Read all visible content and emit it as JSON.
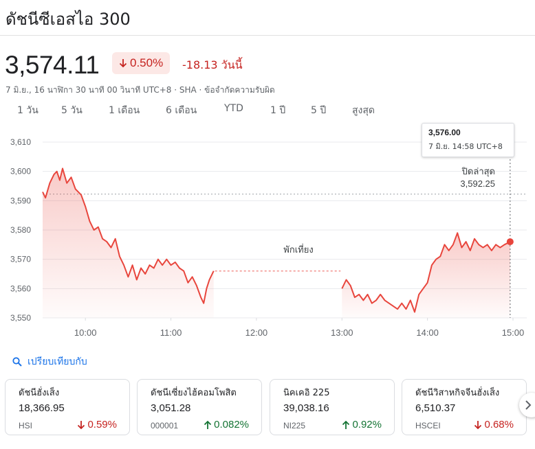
{
  "header": {
    "title": "ดัชนีซีเอสไอ 300",
    "price": "3,574.11",
    "change_pct": "0.50%",
    "change_abs": "-18.13 วันนี้",
    "meta": "7 มิ.ย., 16 นาฬิกา 30 นาที 00 วินาที UTC+8 · SHA · ข้อจำกัดความรับผิด"
  },
  "colors": {
    "down": "#c5221f",
    "up": "#137333",
    "accent": "#1a73e8",
    "line": "#e8453c",
    "fill": "#fce8e6"
  },
  "tabs": [
    {
      "label": "1 วัน",
      "active": true
    },
    {
      "label": "5 วัน",
      "active": false
    },
    {
      "label": "1 เดือน",
      "active": false
    },
    {
      "label": "6 เดือน",
      "active": false
    },
    {
      "label": "YTD",
      "active": false
    },
    {
      "label": "1 ปี",
      "active": false
    },
    {
      "label": "5 ปี",
      "active": false
    },
    {
      "label": "สูงสุด",
      "active": false
    }
  ],
  "tooltip": {
    "value": "3,576.00",
    "time": "7 มิ.ย. 14:58 UTC+8"
  },
  "chart_data": {
    "type": "line",
    "ylim": [
      3550,
      3610
    ],
    "y_ticks": [
      "3,610",
      "3,600",
      "3,590",
      "3,580",
      "3,570",
      "3,560",
      "3,550"
    ],
    "x_ticks": [
      "10:00",
      "11:00",
      "12:00",
      "13:00",
      "14:00",
      "15:00"
    ],
    "prev_close_label": "ปิดล่าสุด",
    "prev_close_value": "3,592.25",
    "prev_close": 3592.25,
    "lunch_label": "พักเที่ยง",
    "morning": [
      [
        "09:30",
        3593
      ],
      [
        "09:32",
        3591
      ],
      [
        "09:35",
        3596
      ],
      [
        "09:38",
        3599
      ],
      [
        "09:40",
        3600
      ],
      [
        "09:42",
        3597
      ],
      [
        "09:44",
        3601
      ],
      [
        "09:47",
        3596
      ],
      [
        "09:50",
        3598
      ],
      [
        "09:53",
        3594
      ],
      [
        "09:57",
        3592
      ],
      [
        "10:00",
        3588
      ],
      [
        "10:03",
        3583
      ],
      [
        "10:06",
        3580
      ],
      [
        "10:09",
        3581
      ],
      [
        "10:12",
        3577
      ],
      [
        "10:15",
        3576
      ],
      [
        "10:18",
        3574
      ],
      [
        "10:21",
        3577
      ],
      [
        "10:24",
        3571
      ],
      [
        "10:27",
        3568
      ],
      [
        "10:30",
        3564
      ],
      [
        "10:33",
        3568
      ],
      [
        "10:36",
        3563
      ],
      [
        "10:39",
        3567
      ],
      [
        "10:42",
        3565
      ],
      [
        "10:45",
        3568
      ],
      [
        "10:48",
        3567
      ],
      [
        "10:51",
        3570
      ],
      [
        "10:54",
        3568
      ],
      [
        "10:57",
        3570
      ],
      [
        "11:00",
        3568
      ],
      [
        "11:03",
        3569
      ],
      [
        "11:06",
        3567
      ],
      [
        "11:09",
        3566
      ],
      [
        "11:12",
        3562
      ],
      [
        "11:15",
        3564
      ],
      [
        "11:18",
        3561
      ],
      [
        "11:21",
        3557
      ],
      [
        "11:23",
        3555
      ],
      [
        "11:25",
        3560
      ],
      [
        "11:27",
        3563
      ],
      [
        "11:30",
        3566
      ]
    ],
    "afternoon": [
      [
        "13:00",
        3560
      ],
      [
        "13:03",
        3563
      ],
      [
        "13:06",
        3561
      ],
      [
        "13:09",
        3557
      ],
      [
        "13:12",
        3558
      ],
      [
        "13:15",
        3556
      ],
      [
        "13:18",
        3558
      ],
      [
        "13:21",
        3555
      ],
      [
        "13:24",
        3556
      ],
      [
        "13:27",
        3558
      ],
      [
        "13:30",
        3556
      ],
      [
        "13:33",
        3555
      ],
      [
        "13:36",
        3554
      ],
      [
        "13:39",
        3553
      ],
      [
        "13:42",
        3555
      ],
      [
        "13:45",
        3553
      ],
      [
        "13:48",
        3556
      ],
      [
        "13:51",
        3552
      ],
      [
        "13:54",
        3558
      ],
      [
        "13:57",
        3560
      ],
      [
        "14:00",
        3562
      ],
      [
        "14:03",
        3568
      ],
      [
        "14:06",
        3570
      ],
      [
        "14:09",
        3571
      ],
      [
        "14:12",
        3575
      ],
      [
        "14:15",
        3573
      ],
      [
        "14:18",
        3575
      ],
      [
        "14:21",
        3579
      ],
      [
        "14:24",
        3574
      ],
      [
        "14:27",
        3576
      ],
      [
        "14:30",
        3573
      ],
      [
        "14:33",
        3577
      ],
      [
        "14:36",
        3575
      ],
      [
        "14:39",
        3574
      ],
      [
        "14:42",
        3575
      ],
      [
        "14:45",
        3573
      ],
      [
        "14:48",
        3575
      ],
      [
        "14:51",
        3574
      ],
      [
        "14:54",
        3575
      ],
      [
        "14:58",
        3576
      ]
    ]
  },
  "compare": {
    "label": "เปรียบเทียบกับ"
  },
  "cards": [
    {
      "name": "ดัชนีฮั่งเส็ง",
      "value": "18,366.95",
      "symbol": "HSI",
      "change": "0.59%",
      "direction": "down"
    },
    {
      "name": "ดัชนีเซี่ยงไฮ้คอมโพสิต",
      "value": "3,051.28",
      "symbol": "000001",
      "change": "0.082%",
      "direction": "up"
    },
    {
      "name": "นิคเคอิ 225",
      "value": "39,038.16",
      "symbol": "NI225",
      "change": "0.92%",
      "direction": "up"
    },
    {
      "name": "ดัชนีวิสาหกิจจีนฮั่งเส็ง",
      "value": "6,510.37",
      "symbol": "HSCEI",
      "change": "0.68%",
      "direction": "down"
    }
  ]
}
